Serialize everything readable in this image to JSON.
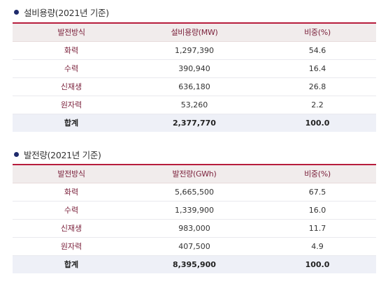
{
  "capacity": {
    "title": "설비용량(2021년 기준)",
    "headers": [
      "발전방식",
      "설비용량(MW)",
      "비중(%)"
    ],
    "rows": [
      {
        "type": "화력",
        "value": "1,297,390",
        "share": "54.6"
      },
      {
        "type": "수력",
        "value": "390,940",
        "share": "16.4"
      },
      {
        "type": "신재생",
        "value": "636,180",
        "share": "26.8"
      },
      {
        "type": "원자력",
        "value": "53,260",
        "share": "2.2"
      }
    ],
    "total": {
      "type": "합계",
      "value": "2,377,770",
      "share": "100.0"
    }
  },
  "generation": {
    "title": "발전량(2021년 기준)",
    "headers": [
      "발전방식",
      "발전량(GWh)",
      "비중(%)"
    ],
    "rows": [
      {
        "type": "화력",
        "value": "5,665,500",
        "share": "67.5"
      },
      {
        "type": "수력",
        "value": "1,339,900",
        "share": "16.0"
      },
      {
        "type": "신재생",
        "value": "983,000",
        "share": "11.7"
      },
      {
        "type": "원자력",
        "value": "407,500",
        "share": "4.9"
      }
    ],
    "total": {
      "type": "합계",
      "value": "8,395,900",
      "share": "100.0"
    }
  }
}
